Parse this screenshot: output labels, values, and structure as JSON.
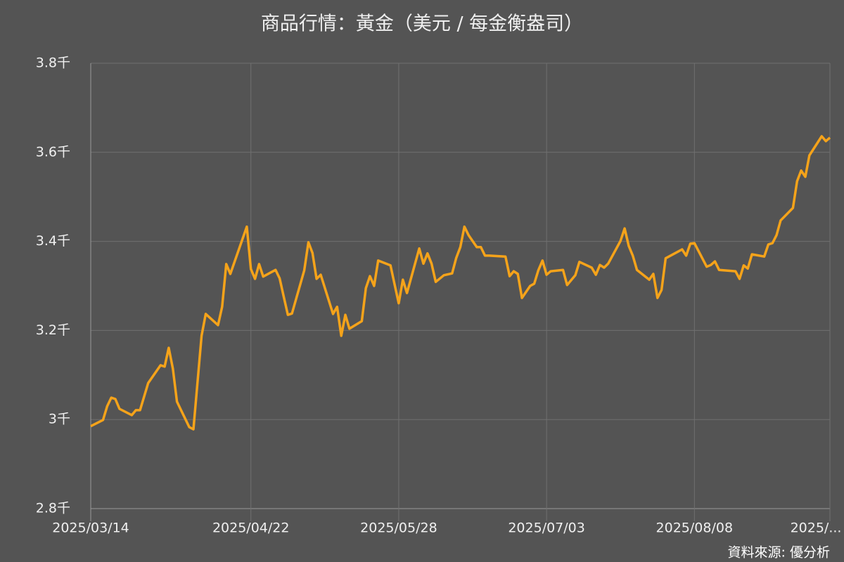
{
  "chart_data": {
    "type": "line",
    "title": "商品行情：黃金（美元 / 每金衡盎司）",
    "source": "資料來源: 優分析",
    "x": [
      "2025/03/14",
      "2025/03/17",
      "2025/03/18",
      "2025/03/19",
      "2025/03/20",
      "2025/03/21",
      "2025/03/24",
      "2025/03/25",
      "2025/03/26",
      "2025/03/28",
      "2025/03/31",
      "2025/04/01",
      "2025/04/02",
      "2025/04/03",
      "2025/04/04",
      "2025/04/07",
      "2025/04/08",
      "2025/04/10",
      "2025/04/11",
      "2025/04/14",
      "2025/04/15",
      "2025/04/16",
      "2025/04/17",
      "2025/04/21",
      "2025/04/22",
      "2025/04/23",
      "2025/04/24",
      "2025/04/25",
      "2025/04/28",
      "2025/04/29",
      "2025/04/30",
      "2025/05/01",
      "2025/05/02",
      "2025/05/05",
      "2025/05/06",
      "2025/05/07",
      "2025/05/08",
      "2025/05/09",
      "2025/05/12",
      "2025/05/13",
      "2025/05/14",
      "2025/05/15",
      "2025/05/16",
      "2025/05/19",
      "2025/05/20",
      "2025/05/21",
      "2025/05/22",
      "2025/05/23",
      "2025/05/26",
      "2025/05/27",
      "2025/05/28",
      "2025/05/29",
      "2025/05/30",
      "2025/06/02",
      "2025/06/03",
      "2025/06/04",
      "2025/06/05",
      "2025/06/06",
      "2025/06/08",
      "2025/06/10",
      "2025/06/11",
      "2025/06/12",
      "2025/06/13",
      "2025/06/14",
      "2025/06/16",
      "2025/06/17",
      "2025/06/18",
      "2025/06/19",
      "2025/06/23",
      "2025/06/24",
      "2025/06/25",
      "2025/06/26",
      "2025/06/27",
      "2025/06/29",
      "2025/06/30",
      "2025/07/01",
      "2025/07/02",
      "2025/07/03",
      "2025/07/04",
      "2025/07/07",
      "2025/07/08",
      "2025/07/10",
      "2025/07/11",
      "2025/07/14",
      "2025/07/15",
      "2025/07/16",
      "2025/07/17",
      "2025/07/18",
      "2025/07/21",
      "2025/07/22",
      "2025/07/23",
      "2025/07/24",
      "2025/07/25",
      "2025/07/28",
      "2025/07/29",
      "2025/07/30",
      "2025/07/31",
      "2025/08/01",
      "2025/08/04",
      "2025/08/05",
      "2025/08/06",
      "2025/08/07",
      "2025/08/08",
      "2025/08/11",
      "2025/08/12",
      "2025/08/13",
      "2025/08/14",
      "2025/08/18",
      "2025/08/19",
      "2025/08/20",
      "2025/08/21",
      "2025/08/22",
      "2025/08/25",
      "2025/08/26",
      "2025/08/27",
      "2025/08/28",
      "2025/08/29",
      "2025/09/01",
      "2025/09/02",
      "2025/09/03",
      "2025/09/04",
      "2025/09/05",
      "2025/09/08",
      "2025/09/09",
      "2025/09/10"
    ],
    "series": [
      {
        "name": "黃金",
        "color": "#f5a31a",
        "values": [
          2.985,
          2.999,
          3.03,
          3.049,
          3.046,
          3.024,
          3.01,
          3.021,
          3.021,
          3.082,
          3.122,
          3.119,
          3.161,
          3.114,
          3.04,
          2.983,
          2.978,
          3.188,
          3.237,
          3.212,
          3.253,
          3.349,
          3.327,
          3.433,
          3.338,
          3.316,
          3.349,
          3.321,
          3.336,
          3.317,
          3.276,
          3.235,
          3.238,
          3.335,
          3.398,
          3.374,
          3.316,
          3.325,
          3.237,
          3.253,
          3.188,
          3.235,
          3.204,
          3.221,
          3.295,
          3.322,
          3.3,
          3.357,
          3.346,
          3.303,
          3.261,
          3.314,
          3.284,
          3.384,
          3.35,
          3.373,
          3.35,
          3.309,
          3.324,
          3.328,
          3.363,
          3.387,
          3.433,
          3.414,
          3.387,
          3.387,
          3.368,
          3.368,
          3.366,
          3.322,
          3.333,
          3.327,
          3.273,
          3.3,
          3.305,
          3.335,
          3.357,
          3.325,
          3.333,
          3.336,
          3.302,
          3.324,
          3.354,
          3.341,
          3.325,
          3.347,
          3.341,
          3.35,
          3.401,
          3.429,
          3.39,
          3.368,
          3.336,
          3.314,
          3.327,
          3.273,
          3.291,
          3.362,
          3.377,
          3.382,
          3.368,
          3.395,
          3.396,
          3.343,
          3.347,
          3.355,
          3.336,
          3.333,
          3.316,
          3.346,
          3.339,
          3.371,
          3.366,
          3.393,
          3.396,
          3.414,
          3.447,
          3.475,
          3.535,
          3.559,
          3.545,
          3.593,
          3.636,
          3.625,
          3.633
        ]
      }
    ],
    "xlim": [
      "2025/03/14",
      "2025/09/10"
    ],
    "xticks": [
      "2025/03/14",
      "2025/04/22",
      "2025/05/28",
      "2025/07/03",
      "2025/08/08",
      {
        "value": "2025/09/10",
        "label": "2025/..."
      }
    ],
    "ylim": [
      2.8,
      3.8
    ],
    "yticks": [
      {
        "value": 2.8,
        "label": "2.8千"
      },
      {
        "value": 3,
        "label": "3千"
      },
      {
        "value": 3.2,
        "label": "3.2千"
      },
      {
        "value": 3.4,
        "label": "3.4千"
      },
      {
        "value": 3.6,
        "label": "3.6千"
      },
      {
        "value": 3.8,
        "label": "3.8千"
      }
    ],
    "grid": true
  }
}
